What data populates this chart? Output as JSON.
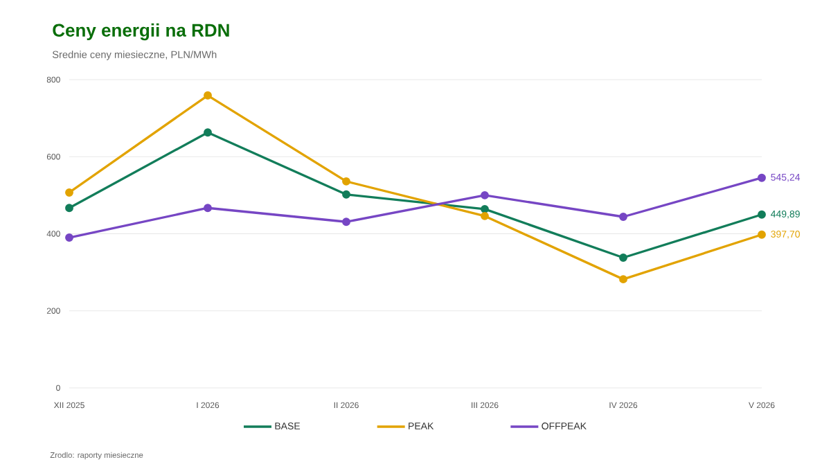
{
  "chart_data": {
    "type": "line",
    "title": "Ceny energii na RDN",
    "subtitle": "Srednie ceny miesieczne, PLN/MWh",
    "categories": [
      "XII 2025",
      "I 2026",
      "II 2026",
      "III 2026",
      "IV 2026",
      "V 2026"
    ],
    "series": [
      {
        "name": "BASE",
        "color": "#127d5a",
        "values": [
          467,
          663,
          502,
          464,
          338,
          449.89
        ],
        "value_labels": [
          null,
          null,
          null,
          null,
          null,
          "449,89"
        ]
      },
      {
        "name": "PEAK",
        "color": "#e2a300",
        "values": [
          507,
          759,
          536,
          446,
          282,
          397.7
        ],
        "value_labels": [
          null,
          null,
          null,
          null,
          null,
          "397,70"
        ]
      },
      {
        "name": "OFFPEAK",
        "color": "#7646c4",
        "values": [
          390,
          467,
          431,
          500,
          444,
          545.24
        ],
        "value_labels": [
          null,
          null,
          null,
          null,
          null,
          "545,24"
        ]
      }
    ],
    "ylim": [
      0,
      800
    ],
    "yticks": [
      0,
      200,
      400,
      600,
      800
    ],
    "grid": "y",
    "legend": "bottom",
    "marker": "circle",
    "line_style": "solid",
    "annotations": [
      "Zrodlo: raporty miesieczne"
    ]
  }
}
